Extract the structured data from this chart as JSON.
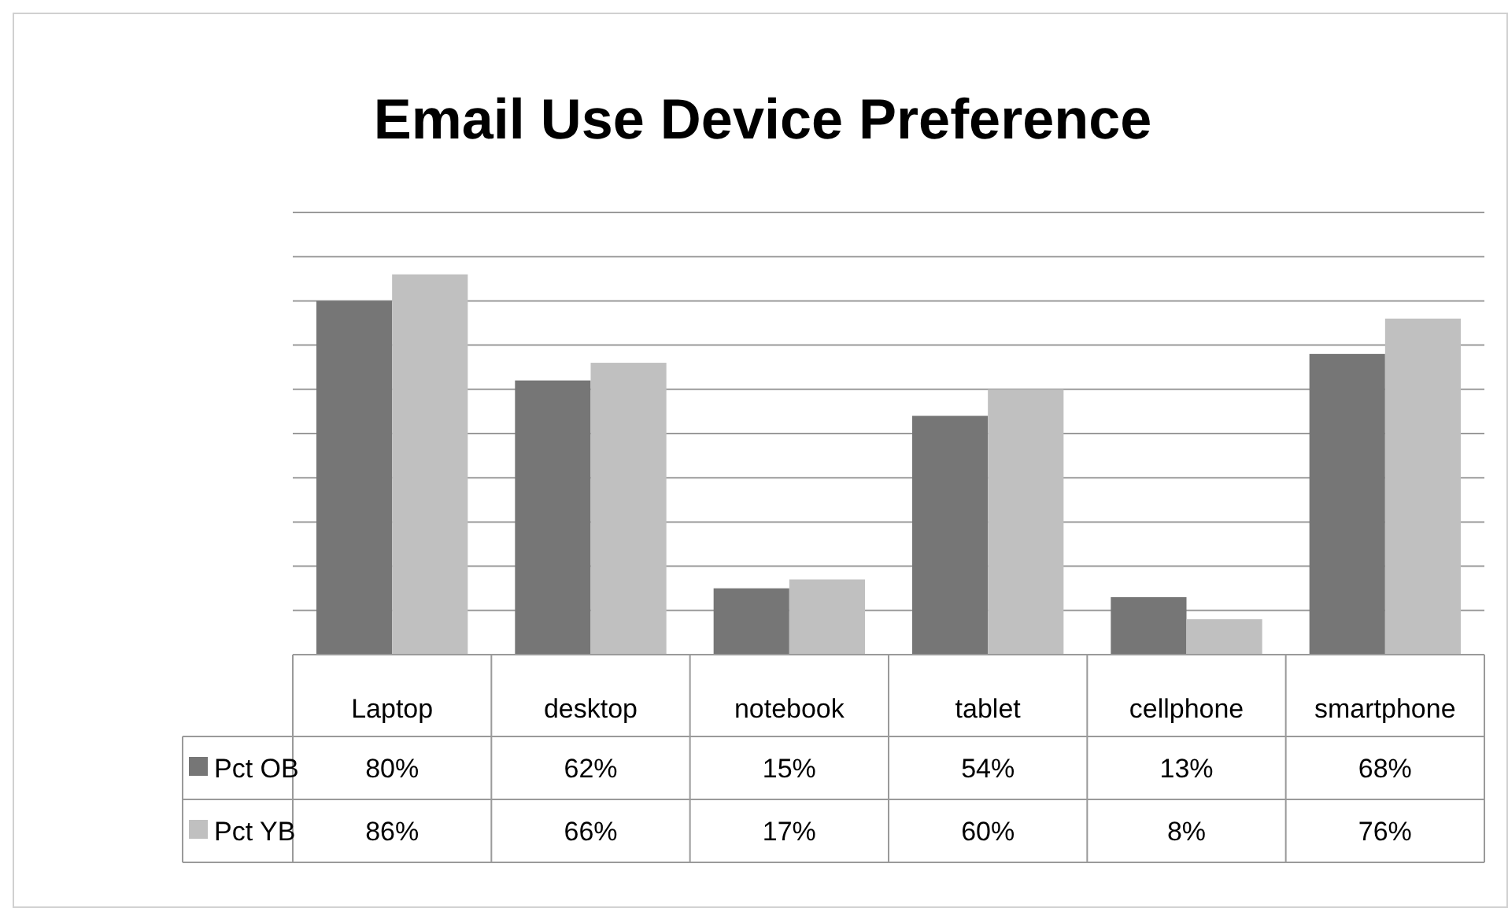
{
  "chart_data": {
    "type": "bar",
    "title": "Email Use Device Preference",
    "categories": [
      "Laptop",
      "desktop",
      "notebook",
      "tablet",
      "cellphone",
      "smartphone"
    ],
    "series": [
      {
        "name": "Pct OB",
        "color": "#767676",
        "values": [
          80,
          62,
          15,
          54,
          13,
          68
        ],
        "value_labels": [
          "80%",
          "62%",
          "15%",
          "54%",
          "13%",
          "68%"
        ]
      },
      {
        "name": "Pct YB",
        "color": "#c0c0c0",
        "values": [
          86,
          66,
          17,
          60,
          8,
          76
        ],
        "value_labels": [
          "86%",
          "66%",
          "17%",
          "60%",
          "8%",
          "76%"
        ]
      }
    ],
    "ylim": [
      0,
      100
    ],
    "yticks": [
      {
        "value": 0,
        "label": null
      },
      {
        "value": 10,
        "label": null
      },
      {
        "value": 20,
        "label": null
      },
      {
        "value": 30,
        "label": null
      },
      {
        "value": 40,
        "label": null
      },
      {
        "value": 50,
        "label": null
      },
      {
        "value": 60,
        "label": null
      },
      {
        "value": 70,
        "label": null
      },
      {
        "value": 80,
        "label": null
      },
      {
        "value": 90,
        "label": null
      },
      {
        "value": 100,
        "label": null
      }
    ],
    "grid": "y",
    "legend": "bottom"
  }
}
